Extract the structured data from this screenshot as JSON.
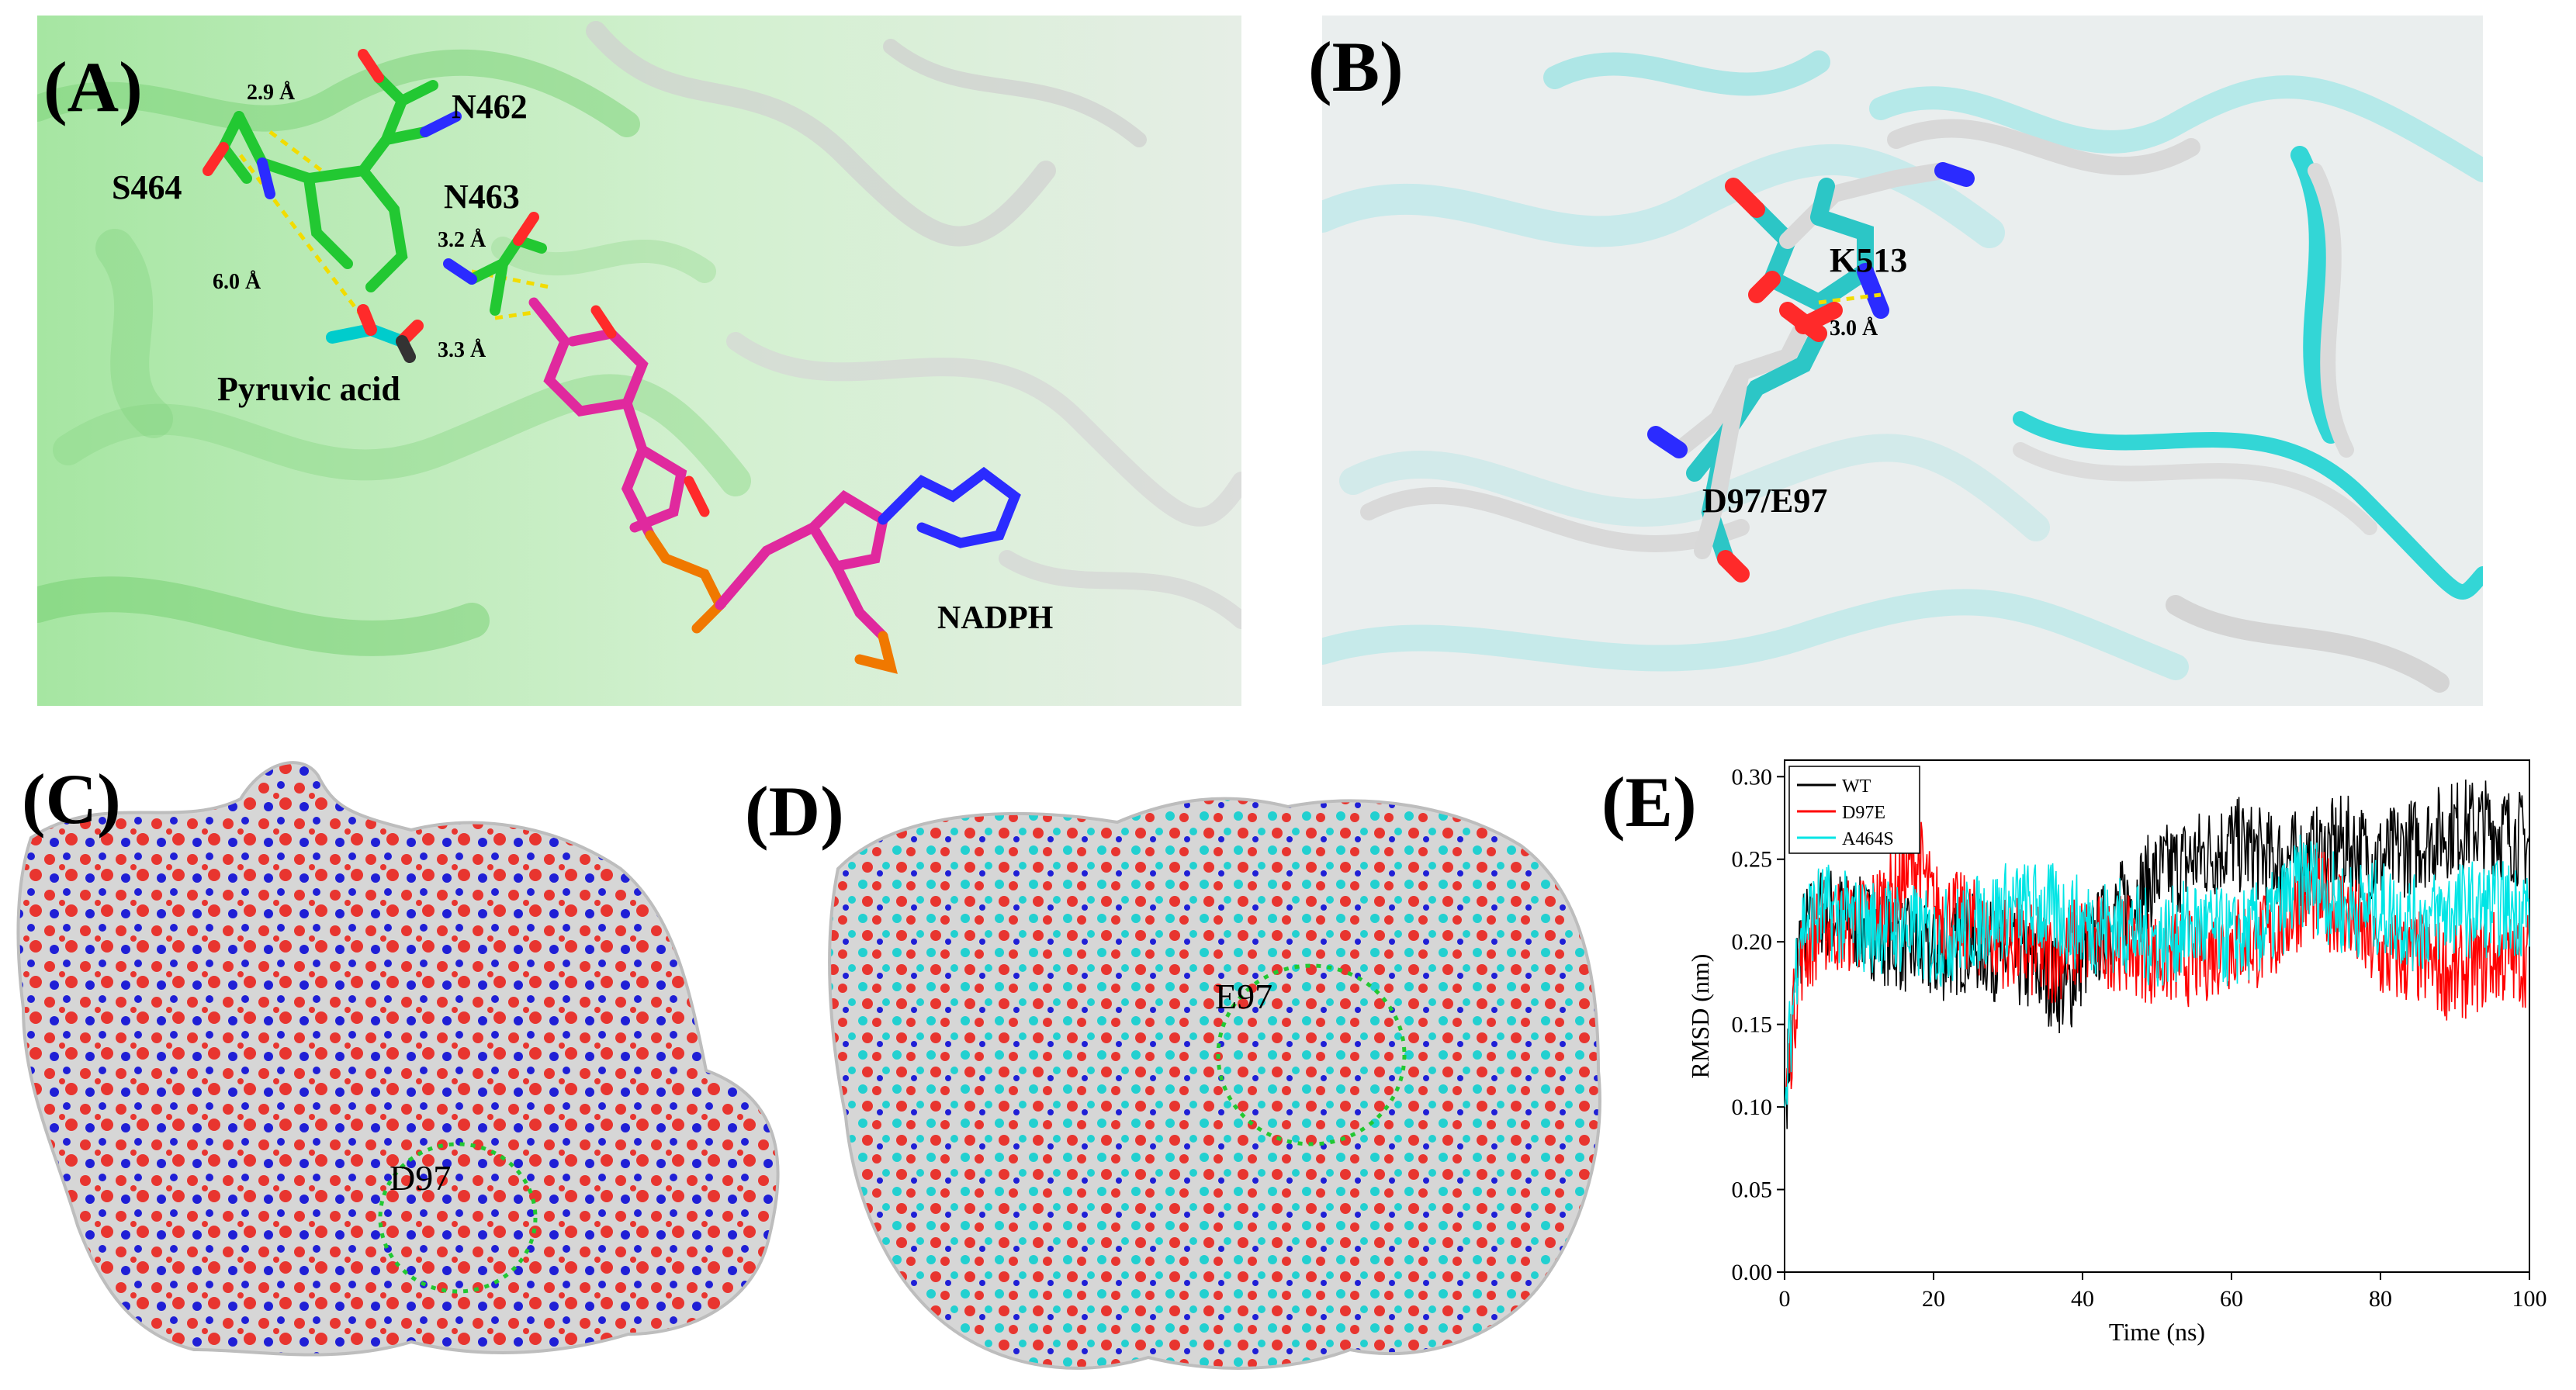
{
  "figure": {
    "panel_labels": [
      "(A)",
      "(B)",
      "(C)",
      "(D)",
      "(E)"
    ]
  },
  "panelA": {
    "residues": [
      "N462",
      "S464",
      "N463"
    ],
    "ligands": [
      "Pyruvic acid",
      "NADPH"
    ],
    "distances": [
      "2.9 Å",
      "6.0 Å",
      "3.2 Å",
      "3.3 Å"
    ],
    "colors": {
      "protein": "#22cc33",
      "ligand": "#00cccc",
      "nadph": "#e0299e",
      "phosphate": "#f07800",
      "oxygen": "#ff2a2a",
      "nitrogen": "#2b2bff",
      "hbond": "#f5e000"
    }
  },
  "panelB": {
    "residues": [
      "K513",
      "D97/E97"
    ],
    "distances": [
      "3.0 Å"
    ],
    "colors": {
      "wt": "#e2e2e2",
      "mutant": "#2cd3d3"
    }
  },
  "panelC": {
    "site_label": "D97",
    "colors": {
      "surface": "#d6d6d6",
      "oxygen": "#e8352f",
      "nitrogen": "#1f1fd6"
    }
  },
  "panelD": {
    "site_label": "E97",
    "colors": {
      "surface": "#d6d6d6",
      "carbon": "#22d0d0",
      "oxygen": "#e8352f",
      "nitrogen": "#1f1fd6"
    }
  },
  "chart_data": {
    "type": "line",
    "xlabel": "Time (ns)",
    "ylabel": "RMSD (nm)",
    "xlim": [
      0,
      100
    ],
    "ylim": [
      0.0,
      0.31
    ],
    "xticks": [
      "0",
      "20",
      "40",
      "60",
      "80",
      "100"
    ],
    "yticks": [
      "0.00",
      "0.05",
      "0.10",
      "0.15",
      "0.20",
      "0.25",
      "0.30"
    ],
    "legend_position": "top-left",
    "series": [
      {
        "name": "WT",
        "color": "#000000",
        "x": [
          0,
          2,
          5,
          10,
          15,
          20,
          25,
          30,
          35,
          38,
          40,
          45,
          50,
          55,
          60,
          65,
          70,
          75,
          80,
          85,
          90,
          95,
          100
        ],
        "values": [
          0.1,
          0.2,
          0.22,
          0.21,
          0.2,
          0.19,
          0.2,
          0.19,
          0.18,
          0.17,
          0.19,
          0.22,
          0.24,
          0.25,
          0.26,
          0.25,
          0.25,
          0.26,
          0.25,
          0.26,
          0.27,
          0.27,
          0.26
        ]
      },
      {
        "name": "D97E",
        "color": "#ff0000",
        "x": [
          0,
          2,
          5,
          10,
          15,
          18,
          20,
          25,
          30,
          35,
          40,
          45,
          50,
          55,
          60,
          65,
          70,
          75,
          80,
          85,
          90,
          95,
          100
        ],
        "values": [
          0.1,
          0.19,
          0.21,
          0.21,
          0.23,
          0.25,
          0.22,
          0.21,
          0.2,
          0.19,
          0.2,
          0.2,
          0.19,
          0.19,
          0.2,
          0.2,
          0.23,
          0.22,
          0.19,
          0.19,
          0.18,
          0.19,
          0.19
        ]
      },
      {
        "name": "A464S",
        "color": "#00e5e5",
        "x": [
          0,
          2,
          5,
          10,
          15,
          20,
          25,
          30,
          35,
          40,
          45,
          50,
          55,
          60,
          65,
          70,
          75,
          80,
          85,
          90,
          95,
          100
        ],
        "values": [
          0.1,
          0.21,
          0.22,
          0.21,
          0.21,
          0.2,
          0.21,
          0.22,
          0.22,
          0.21,
          0.21,
          0.2,
          0.21,
          0.2,
          0.21,
          0.24,
          0.22,
          0.22,
          0.21,
          0.22,
          0.22,
          0.22
        ]
      }
    ]
  }
}
